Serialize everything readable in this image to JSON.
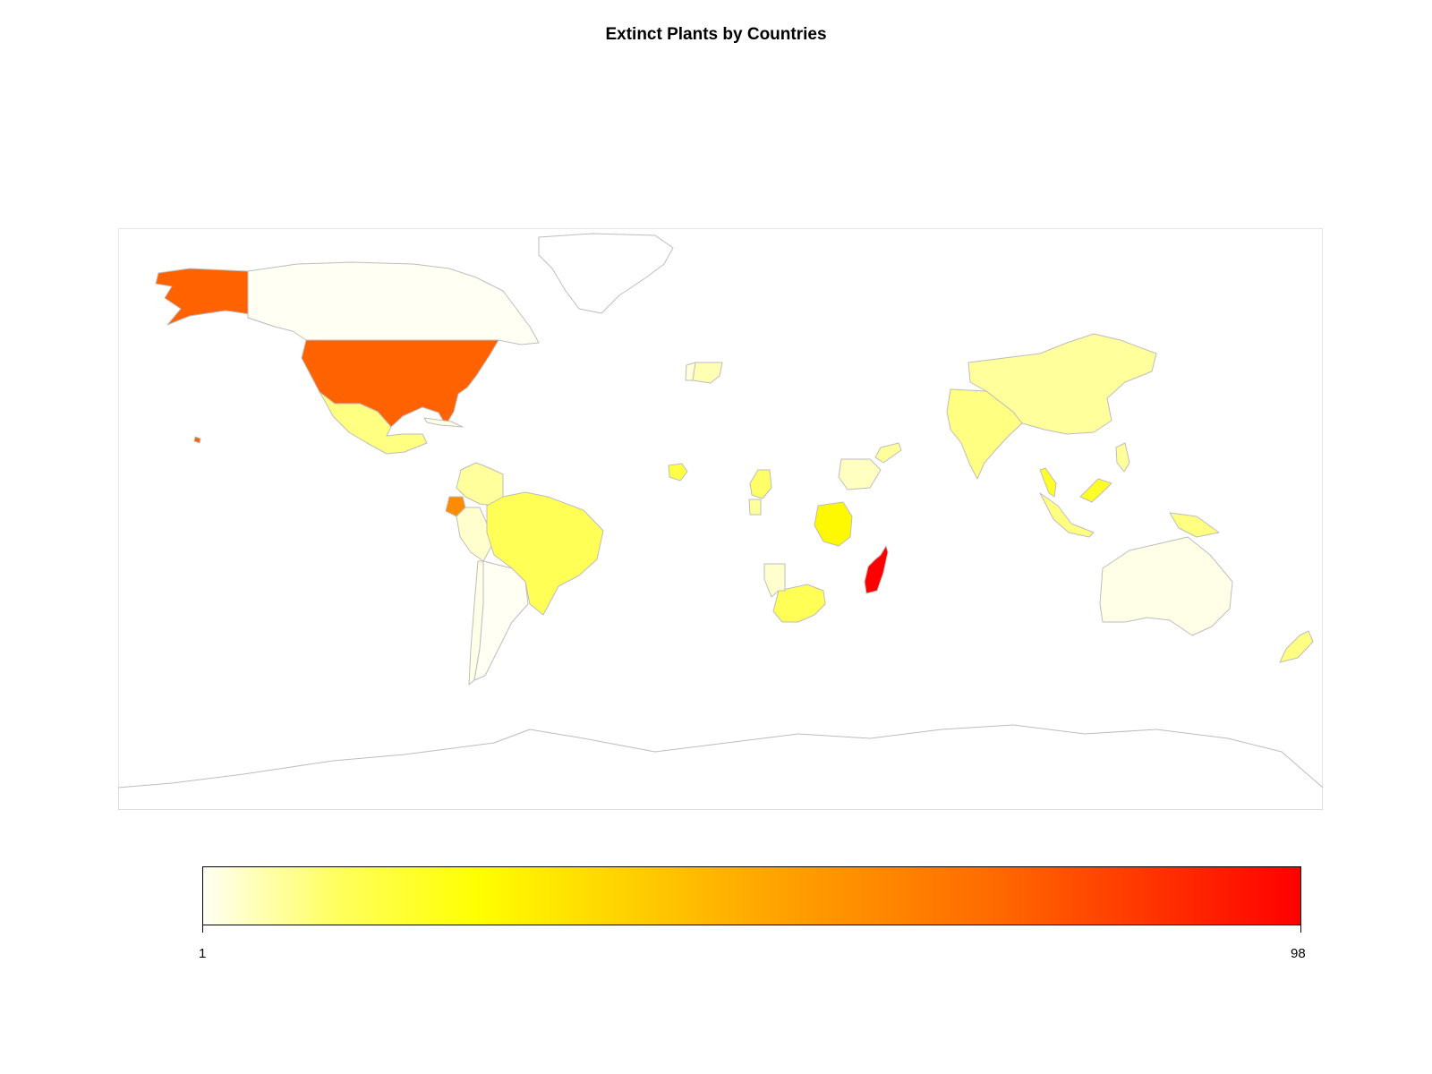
{
  "title": "Extinct Plants by Countries",
  "map": {
    "projection": "equirectangular",
    "border_color": "#bdbdbd",
    "ocean_color": "#ffffff",
    "regions": [
      {
        "name": "Alaska (USA)",
        "value": 73
      },
      {
        "name": "United States",
        "value": 73
      },
      {
        "name": "Hawaii (USA)",
        "value": 73
      },
      {
        "name": "Canada",
        "value": 1
      },
      {
        "name": "Greenland",
        "value": 0
      },
      {
        "name": "Mexico",
        "value": 10
      },
      {
        "name": "Cuba",
        "value": 2
      },
      {
        "name": "Colombia",
        "value": 8
      },
      {
        "name": "Ecuador",
        "value": 60
      },
      {
        "name": "Peru",
        "value": 4
      },
      {
        "name": "Brazil",
        "value": 14
      },
      {
        "name": "Chile",
        "value": 2
      },
      {
        "name": "Argentina",
        "value": 1
      },
      {
        "name": "Spain",
        "value": 6
      },
      {
        "name": "Portugal",
        "value": 3
      },
      {
        "name": "Sierra Leone",
        "value": 16
      },
      {
        "name": "Cameroon",
        "value": 12
      },
      {
        "name": "Gabon",
        "value": 8
      },
      {
        "name": "Ethiopia",
        "value": 5
      },
      {
        "name": "Somalia",
        "value": 8
      },
      {
        "name": "Tanzania",
        "value": 27
      },
      {
        "name": "Madagascar",
        "value": 98
      },
      {
        "name": "South Africa",
        "value": 14
      },
      {
        "name": "Namibia",
        "value": 4
      },
      {
        "name": "India",
        "value": 10
      },
      {
        "name": "China",
        "value": 8
      },
      {
        "name": "Malaysia (peninsula)",
        "value": 20
      },
      {
        "name": "Malaysia (Borneo)",
        "value": 20
      },
      {
        "name": "Indonesia",
        "value": 10
      },
      {
        "name": "Philippines",
        "value": 8
      },
      {
        "name": "Papua New Guinea",
        "value": 10
      },
      {
        "name": "Australia",
        "value": 2
      },
      {
        "name": "New Zealand",
        "value": 10
      }
    ]
  },
  "legend": {
    "min_label": "1",
    "max_label": "98",
    "min": 1,
    "max": 98,
    "colors": [
      "#fffff4",
      "#ffff60",
      "#ffff00",
      "#ffaa00",
      "#ff6a00",
      "#ff0000"
    ]
  }
}
